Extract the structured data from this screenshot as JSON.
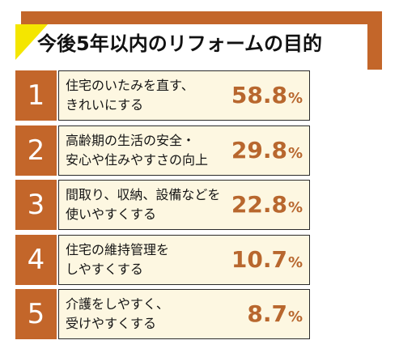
{
  "chart_data": {
    "type": "table",
    "title": "今後5年以内のリフォームの目的",
    "unit": "%",
    "rows": [
      {
        "rank": "1",
        "label": "住宅のいたみを直す、\nきれいにする",
        "value": "58.8"
      },
      {
        "rank": "2",
        "label": "高齢期の生活の安全・\n安心や住みやすさの向上",
        "value": "29.8"
      },
      {
        "rank": "3",
        "label": "間取り、収納、設備などを\n使いやすくする",
        "value": "22.8"
      },
      {
        "rank": "4",
        "label": "住宅の維持管理を\nしやすくする",
        "value": "10.7"
      },
      {
        "rank": "5",
        "label": "介護をしやすく、\n受けやすくする",
        "value": "8.7"
      }
    ]
  },
  "colors": {
    "accent": "#c3662a",
    "highlight": "#f4e600",
    "panel_bg": "#fdf7e1",
    "value_text": "#b8672e"
  }
}
